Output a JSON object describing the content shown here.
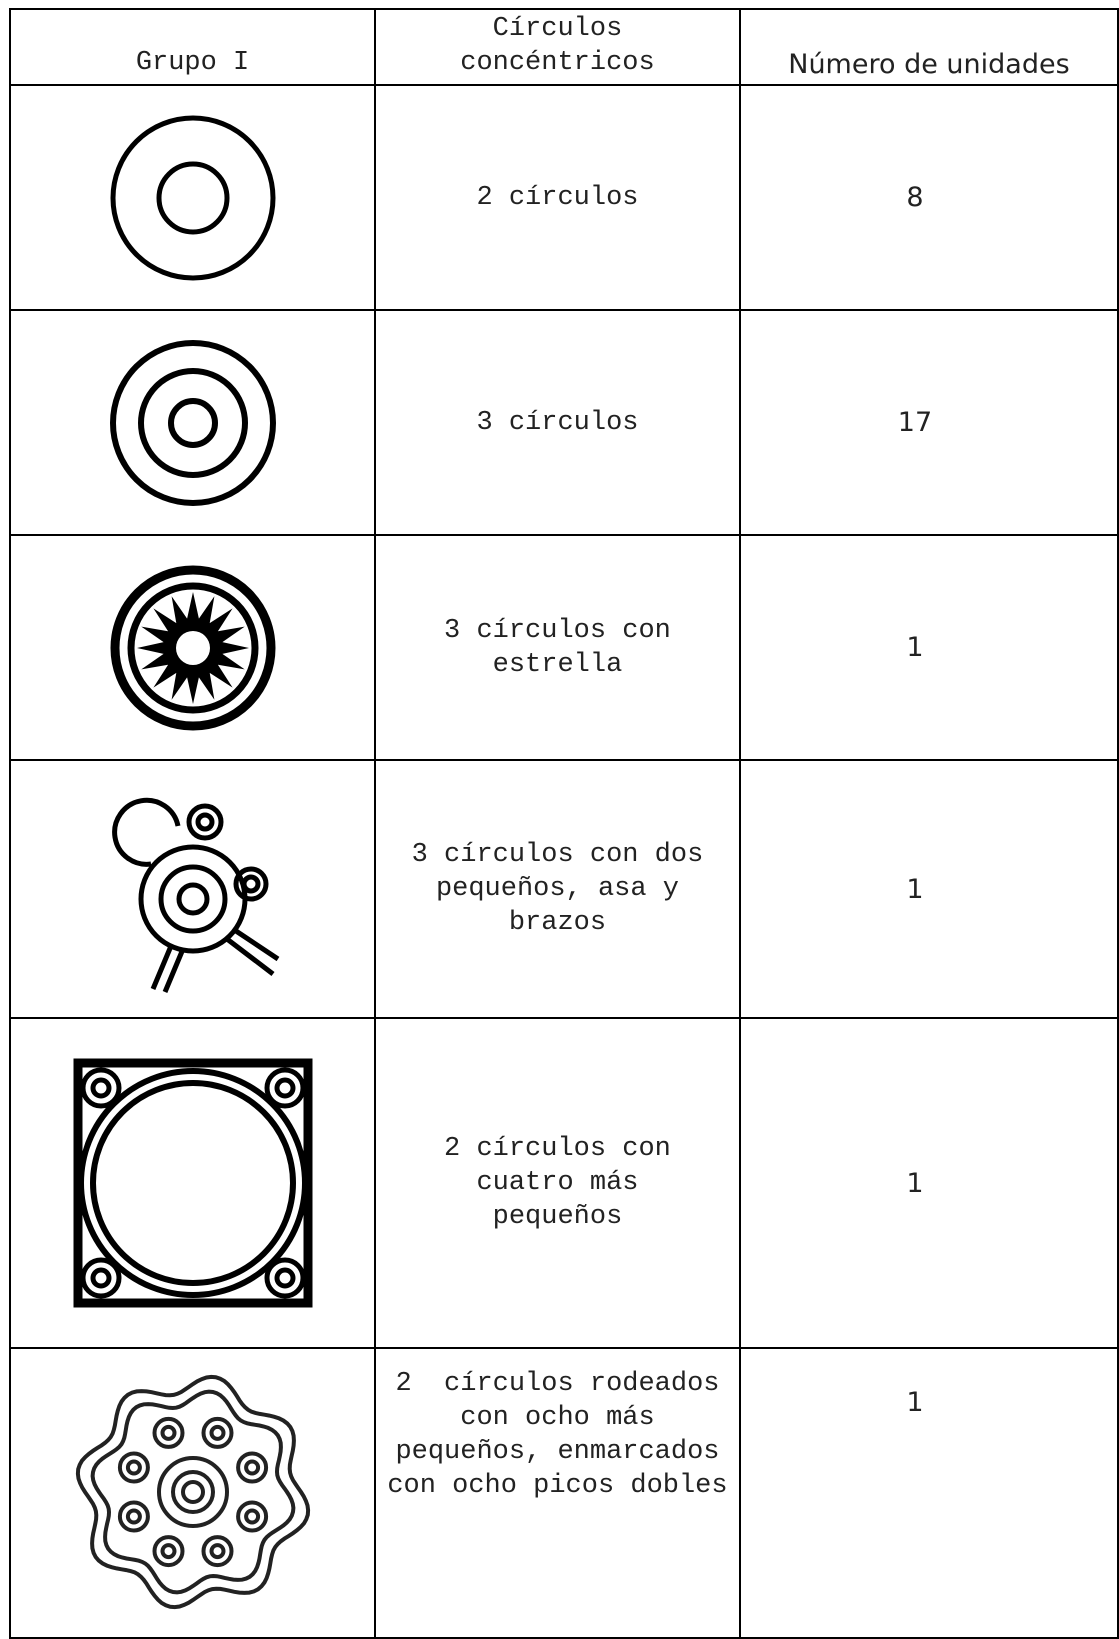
{
  "header": [
    "Grupo I",
    "Círculos concéntricos",
    "Número de unidades"
  ],
  "rows": [
    {
      "description": "2 círculos",
      "units": 8
    },
    {
      "description": "3 círculos",
      "units": 17
    },
    {
      "description": "3 círculos con estrella",
      "units": 1
    },
    {
      "description": "3 círculos con dos pequeños, asa y brazos",
      "units": 1
    },
    {
      "description": "2 círculos con cuatro más pequeños",
      "units": 1
    },
    {
      "description": "2  círculos rodeados con ocho más pequeños, enmarcados con ocho picos dobles",
      "units": 1
    }
  ]
}
